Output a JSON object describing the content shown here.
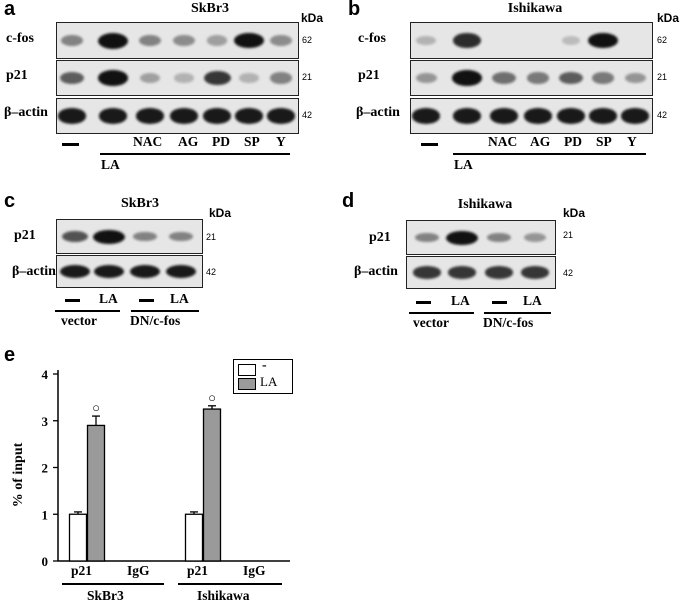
{
  "panels": {
    "a": {
      "letter": "a",
      "title": "SkBr3",
      "kda": "kDa",
      "rows": [
        "c-fos",
        "p21",
        "β–actin"
      ],
      "mw": [
        "62",
        "21",
        "42"
      ],
      "lanes": [
        "—",
        "LA",
        "NAC",
        "AG",
        "PD",
        "SP",
        "Y"
      ],
      "band_intensity": {
        "c-fos": [
          0.35,
          1.0,
          0.35,
          0.3,
          0.2,
          0.95,
          0.3
        ],
        "p21": [
          0.55,
          0.95,
          0.2,
          0.1,
          0.75,
          0.1,
          0.35
        ],
        "β–actin": [
          0.9,
          0.9,
          0.9,
          0.9,
          0.9,
          0.9,
          0.9
        ]
      }
    },
    "b": {
      "letter": "b",
      "title": "Ishikawa",
      "kda": "kDa",
      "rows": [
        "c-fos",
        "p21",
        "β–actin"
      ],
      "mw": [
        "62",
        "21",
        "42"
      ],
      "lanes": [
        "—",
        "LA",
        "NAC",
        "AG",
        "PD",
        "SP",
        "Y"
      ],
      "band_intensity": {
        "c-fos": [
          0.1,
          0.8,
          0.0,
          0.0,
          0.05,
          0.95,
          0.0
        ],
        "p21": [
          0.25,
          0.95,
          0.45,
          0.4,
          0.55,
          0.4,
          0.25
        ],
        "β–actin": [
          0.9,
          0.9,
          0.9,
          0.9,
          0.9,
          0.9,
          0.9
        ]
      }
    },
    "c": {
      "letter": "c",
      "title": "SkBr3",
      "kda": "kDa",
      "rows": [
        "p21",
        "β–actin"
      ],
      "mw": [
        "21",
        "42"
      ],
      "lanes": [
        "—",
        "LA",
        "—",
        "LA"
      ],
      "groups": [
        "vector",
        "DN/c-fos"
      ],
      "band_intensity": {
        "p21": [
          0.6,
          1.0,
          0.35,
          0.35
        ],
        "β–actin": [
          0.9,
          0.9,
          0.9,
          0.9
        ]
      }
    },
    "d": {
      "letter": "d",
      "title": "Ishikawa",
      "kda": "kDa",
      "rows": [
        "p21",
        "β–actin"
      ],
      "mw": [
        "21",
        "42"
      ],
      "lanes": [
        "—",
        "LA",
        "—",
        "LA"
      ],
      "groups": [
        "vector",
        "DN/c-fos"
      ],
      "band_intensity": {
        "p21": [
          0.35,
          1.0,
          0.35,
          0.25
        ],
        "β–actin": [
          0.75,
          0.75,
          0.75,
          0.75
        ]
      }
    },
    "e": {
      "letter": "e",
      "ylabel": "% of input",
      "legend": [
        "-",
        "LA"
      ],
      "bottom_labels": [
        "p21",
        "IgG",
        "p21",
        "IgG"
      ],
      "groups": [
        "SkBr3",
        "Ishikawa"
      ],
      "significance_marker": "○"
    }
  },
  "chart_data": {
    "type": "bar",
    "ylabel": "% of input",
    "ylim": [
      0,
      4
    ],
    "yticks": [
      "0",
      "1",
      "2",
      "3",
      "4"
    ],
    "categories": [
      "SkBr3 p21",
      "SkBr3 IgG",
      "Ishikawa p21",
      "Ishikawa IgG"
    ],
    "series": [
      {
        "name": "-",
        "values": [
          1.0,
          null,
          1.0,
          null
        ],
        "errors": [
          0.05,
          null,
          0.05,
          null
        ],
        "color": "#ffffff"
      },
      {
        "name": "LA",
        "values": [
          2.9,
          null,
          3.25,
          null
        ],
        "errors": [
          0.2,
          null,
          0.07,
          null
        ],
        "color": "#9a9a9a"
      }
    ],
    "legend_position": "top-right"
  }
}
